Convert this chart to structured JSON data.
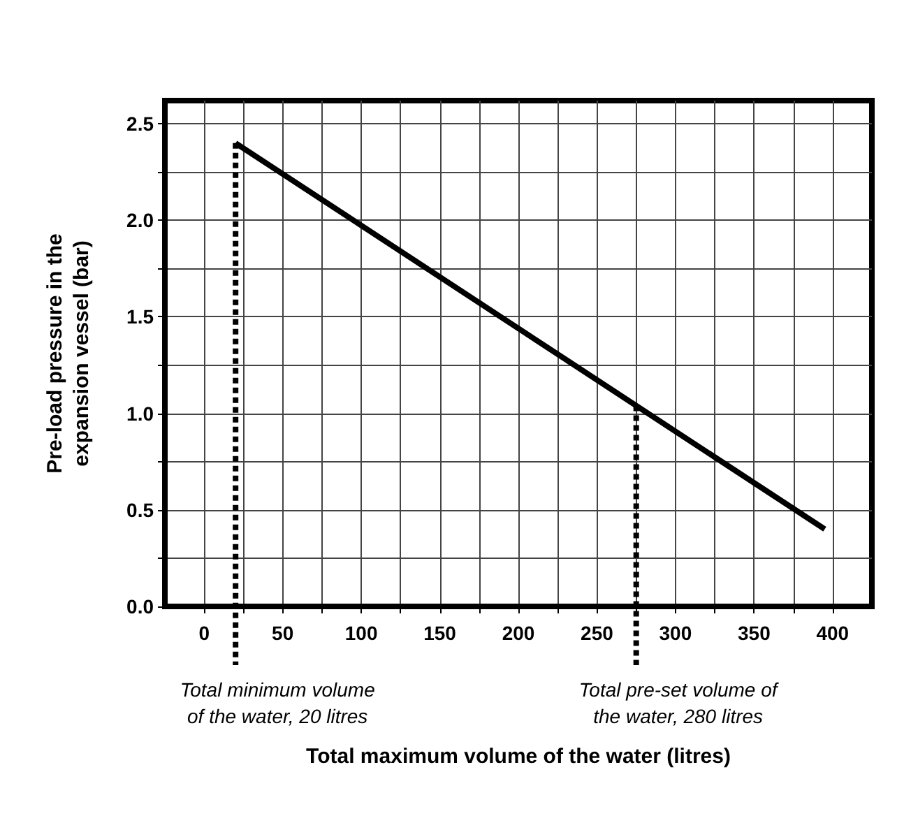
{
  "chart_data": {
    "type": "line",
    "xlabel": "Total maximum volume of the water (litres)",
    "ylabel": "Pre-load pressure in the\nexpansion vessel (bar)",
    "series": [
      {
        "color": "#000000",
        "x": [
          20,
          395
        ],
        "values": [
          2.4,
          0.4
        ]
      }
    ],
    "xlim": [
      -25,
      425
    ],
    "xticks": [
      0,
      {
        "value": 25,
        "label": null
      },
      50,
      {
        "value": 75,
        "label": null
      },
      100,
      {
        "value": 125,
        "label": null
      },
      150,
      {
        "value": 175,
        "label": null
      },
      200,
      {
        "value": 225,
        "label": null
      },
      250,
      {
        "value": 275,
        "label": null
      },
      300,
      {
        "value": 325,
        "label": null
      },
      350,
      {
        "value": 375,
        "label": null
      },
      400
    ],
    "ylim": [
      0,
      2.62
    ],
    "yticks": [
      {
        "value": 0,
        "label": "0.0"
      },
      {
        "value": 0.25,
        "label": null
      },
      0.5,
      {
        "value": 0.75,
        "label": null
      },
      {
        "value": 1,
        "label": "1.0"
      },
      {
        "value": 1.25,
        "label": null
      },
      1.5,
      {
        "value": 1.75,
        "label": null
      },
      {
        "value": 2,
        "label": "2.0"
      },
      {
        "value": 2.25,
        "label": null
      },
      2.5
    ],
    "ref_lines": [
      {
        "axis": "x",
        "value": 20,
        "label": "Total minimum volume\nof the water, 20 litres",
        "color": "#000000",
        "line_style": "dotted"
      },
      {
        "axis": "x",
        "value": 275,
        "label": "Total pre-set volume of\nthe water, 280 litres",
        "color": "#000000",
        "line_style": "dotted"
      }
    ],
    "grid": true,
    "marker": "none",
    "line_style": "solid"
  }
}
